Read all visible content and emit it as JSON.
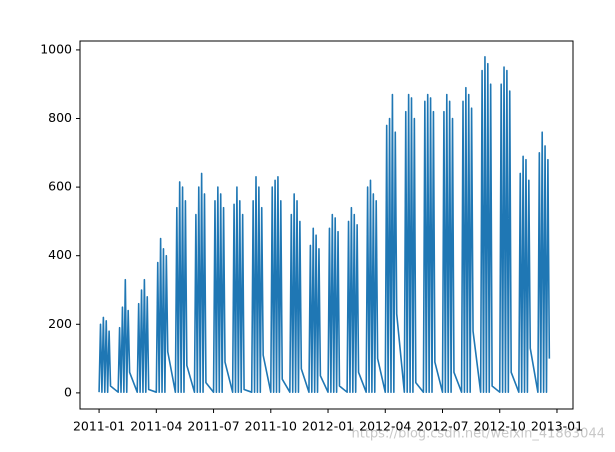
{
  "chart_data": {
    "type": "line",
    "color": "#1f77b4",
    "watermark": "https://blog.csdn.net/weixin_41863044",
    "xlim": [
      -1.0,
      24.84
    ],
    "ylim": [
      -47,
      1026
    ],
    "xticks": [
      {
        "value": 0,
        "label": "2011-01"
      },
      {
        "value": 3,
        "label": "2011-04"
      },
      {
        "value": 6,
        "label": "2011-07"
      },
      {
        "value": 9,
        "label": "2011-10"
      },
      {
        "value": 12,
        "label": "2012-01"
      },
      {
        "value": 15,
        "label": "2012-04"
      },
      {
        "value": 18,
        "label": "2012-07"
      },
      {
        "value": 21,
        "label": "2012-10"
      },
      {
        "value": 24,
        "label": "2013-01"
      }
    ],
    "yticks": [
      0,
      200,
      400,
      600,
      800,
      1000
    ],
    "x": [
      0,
      0.075,
      0.15,
      0.225,
      0.3,
      0.375,
      0.45,
      0.525,
      0.6,
      1,
      1.075,
      1.15,
      1.225,
      1.3,
      1.375,
      1.45,
      1.525,
      1.6,
      2,
      2.075,
      2.15,
      2.225,
      2.3,
      2.375,
      2.45,
      2.525,
      2.6,
      3,
      3.075,
      3.15,
      3.225,
      3.3,
      3.375,
      3.45,
      3.525,
      3.6,
      4,
      4.075,
      4.15,
      4.225,
      4.3,
      4.375,
      4.45,
      4.525,
      4.6,
      5,
      5.075,
      5.15,
      5.225,
      5.3,
      5.375,
      5.45,
      5.525,
      5.6,
      6,
      6.075,
      6.15,
      6.225,
      6.3,
      6.375,
      6.45,
      6.525,
      6.6,
      7,
      7.075,
      7.15,
      7.225,
      7.3,
      7.375,
      7.45,
      7.525,
      7.6,
      8,
      8.075,
      8.15,
      8.225,
      8.3,
      8.375,
      8.45,
      8.525,
      8.6,
      9,
      9.075,
      9.15,
      9.225,
      9.3,
      9.375,
      9.45,
      9.525,
      9.6,
      10,
      10.075,
      10.15,
      10.225,
      10.3,
      10.375,
      10.45,
      10.525,
      10.6,
      11,
      11.075,
      11.15,
      11.225,
      11.3,
      11.375,
      11.45,
      11.525,
      11.6,
      12,
      12.075,
      12.15,
      12.225,
      12.3,
      12.375,
      12.45,
      12.525,
      12.6,
      13,
      13.075,
      13.15,
      13.225,
      13.3,
      13.375,
      13.45,
      13.525,
      13.6,
      14,
      14.075,
      14.15,
      14.225,
      14.3,
      14.375,
      14.45,
      14.525,
      14.6,
      15,
      15.075,
      15.15,
      15.225,
      15.3,
      15.375,
      15.45,
      15.525,
      15.6,
      16,
      16.075,
      16.15,
      16.225,
      16.3,
      16.375,
      16.45,
      16.525,
      16.6,
      17,
      17.075,
      17.15,
      17.225,
      17.3,
      17.375,
      17.45,
      17.525,
      17.6,
      18,
      18.075,
      18.15,
      18.225,
      18.3,
      18.375,
      18.45,
      18.525,
      18.6,
      19,
      19.075,
      19.15,
      19.225,
      19.3,
      19.375,
      19.45,
      19.525,
      19.6,
      20,
      20.075,
      20.15,
      20.225,
      20.3,
      20.375,
      20.45,
      20.525,
      20.6,
      21,
      21.075,
      21.15,
      21.225,
      21.3,
      21.375,
      21.45,
      21.525,
      21.6,
      22,
      22.075,
      22.15,
      22.225,
      22.3,
      22.375,
      22.45,
      22.525,
      22.6,
      23,
      23.075,
      23.15,
      23.225,
      23.3,
      23.375,
      23.45,
      23.525,
      23.6
    ],
    "values": [
      2,
      200,
      2,
      220,
      2,
      210,
      2,
      180,
      20,
      2,
      190,
      2,
      250,
      2,
      330,
      2,
      240,
      60,
      2,
      260,
      2,
      300,
      2,
      330,
      2,
      280,
      10,
      2,
      380,
      2,
      450,
      2,
      420,
      2,
      400,
      120,
      2,
      540,
      2,
      615,
      2,
      600,
      2,
      560,
      80,
      2,
      520,
      2,
      600,
      2,
      640,
      2,
      580,
      30,
      2,
      560,
      2,
      600,
      2,
      580,
      2,
      540,
      90,
      2,
      550,
      2,
      600,
      2,
      560,
      2,
      520,
      10,
      2,
      560,
      2,
      630,
      2,
      600,
      2,
      540,
      110,
      2,
      600,
      2,
      620,
      2,
      630,
      2,
      560,
      40,
      2,
      520,
      2,
      580,
      2,
      560,
      2,
      500,
      70,
      2,
      430,
      2,
      480,
      2,
      460,
      2,
      420,
      50,
      2,
      480,
      2,
      520,
      2,
      510,
      2,
      470,
      20,
      2,
      500,
      2,
      540,
      2,
      520,
      2,
      490,
      60,
      2,
      600,
      2,
      620,
      2,
      580,
      2,
      560,
      100,
      2,
      780,
      2,
      800,
      2,
      870,
      2,
      760,
      230,
      2,
      820,
      2,
      870,
      2,
      860,
      2,
      800,
      30,
      2,
      850,
      2,
      870,
      2,
      860,
      2,
      820,
      90,
      2,
      820,
      2,
      870,
      2,
      850,
      2,
      800,
      60,
      2,
      850,
      2,
      890,
      2,
      870,
      2,
      830,
      180,
      2,
      940,
      2,
      980,
      2,
      960,
      2,
      900,
      20,
      2,
      900,
      2,
      950,
      2,
      940,
      2,
      880,
      60,
      2,
      640,
      2,
      690,
      2,
      680,
      2,
      620,
      130,
      2,
      700,
      2,
      760,
      2,
      720,
      2,
      680,
      100
    ]
  }
}
